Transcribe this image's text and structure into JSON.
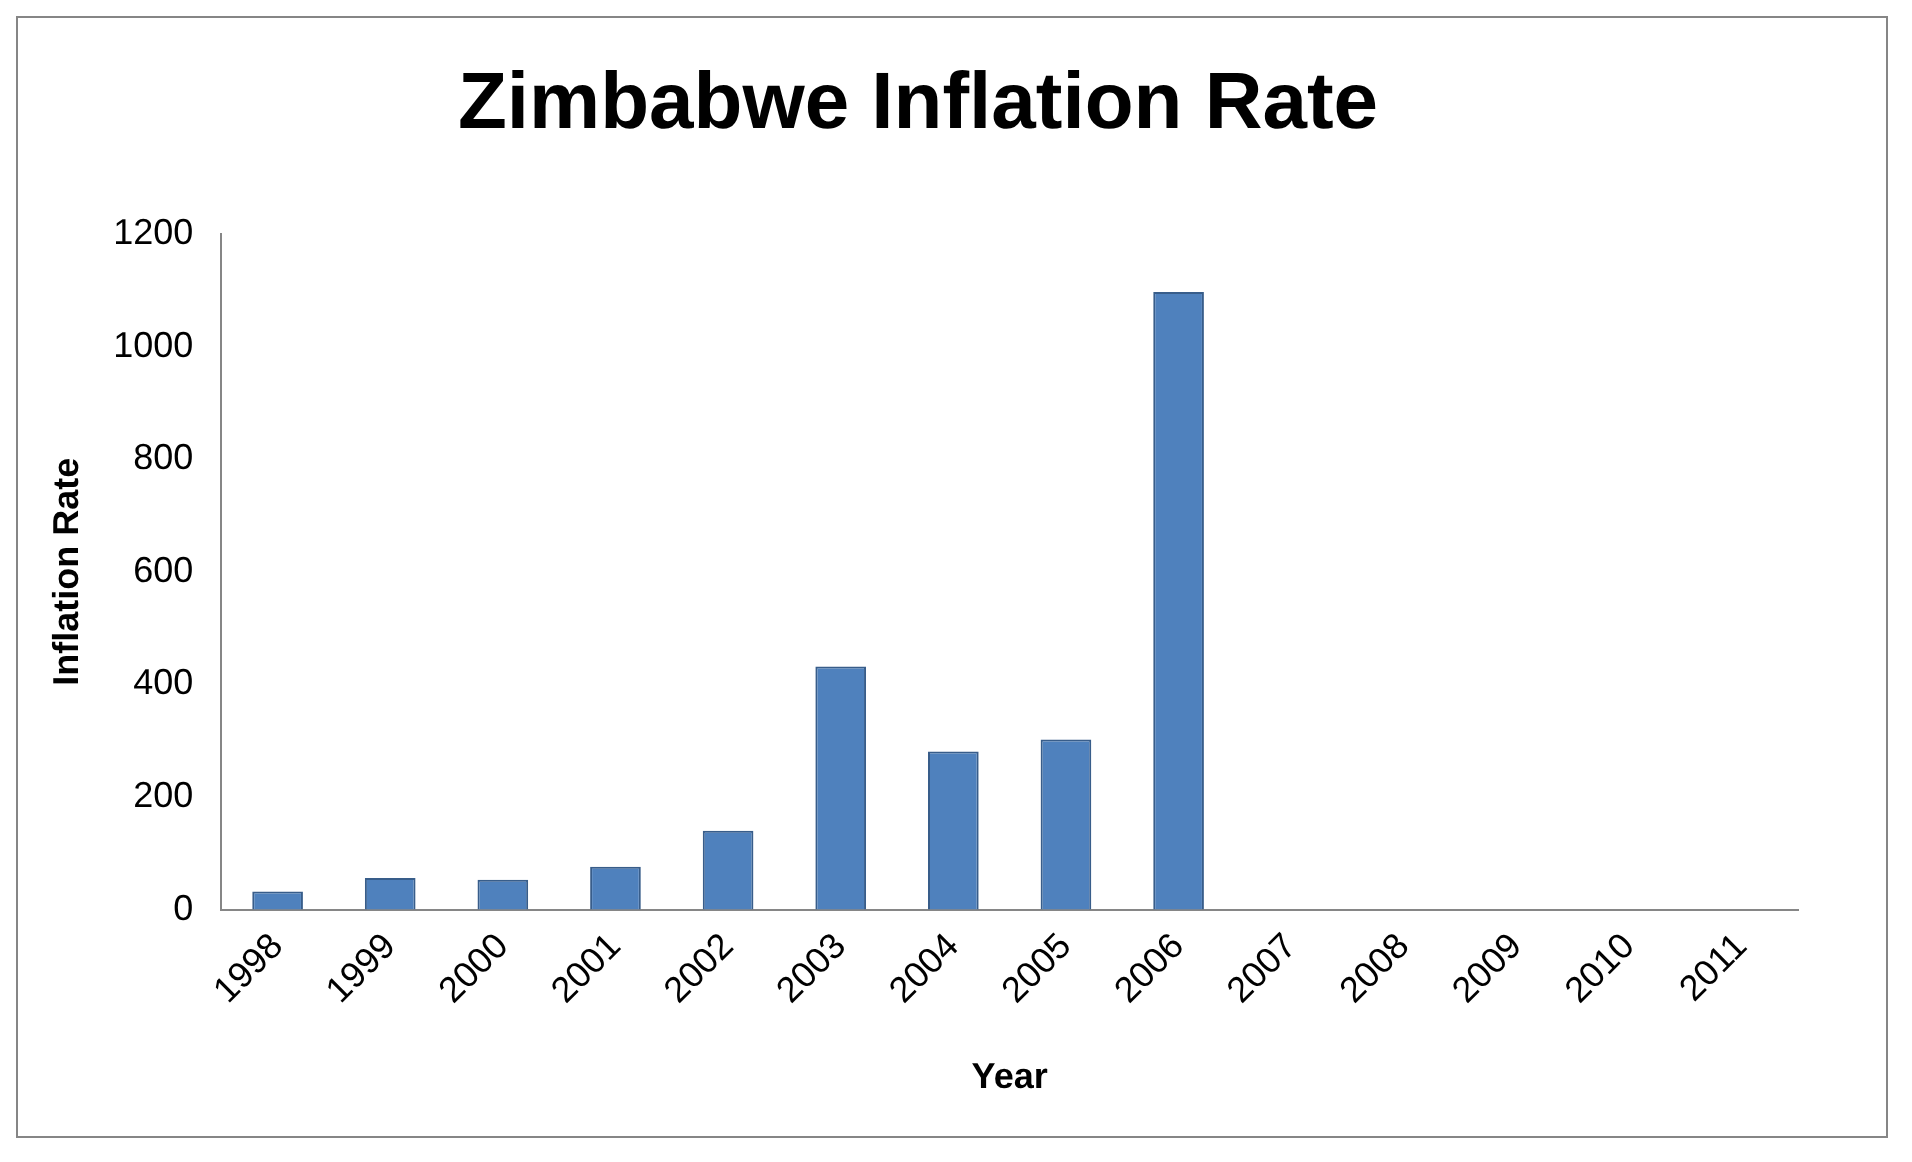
{
  "chart_data": {
    "type": "bar",
    "title": "Zimbabwe Inflation Rate",
    "xlabel": "Year",
    "ylabel": "Inflation Rate",
    "categories": [
      "1998",
      "1999",
      "2000",
      "2001",
      "2002",
      "2003",
      "2004",
      "2005",
      "2006",
      "2007",
      "2008",
      "2009",
      "2010",
      "2011"
    ],
    "values": [
      32,
      56,
      53,
      76,
      140,
      432,
      281,
      302,
      1097,
      null,
      null,
      null,
      null,
      null
    ],
    "color": "#4f81bd",
    "ylim": [
      0,
      1200
    ],
    "yticks": [
      0,
      200,
      400,
      600,
      800,
      1000,
      1200
    ],
    "grid": false,
    "legend": false
  }
}
